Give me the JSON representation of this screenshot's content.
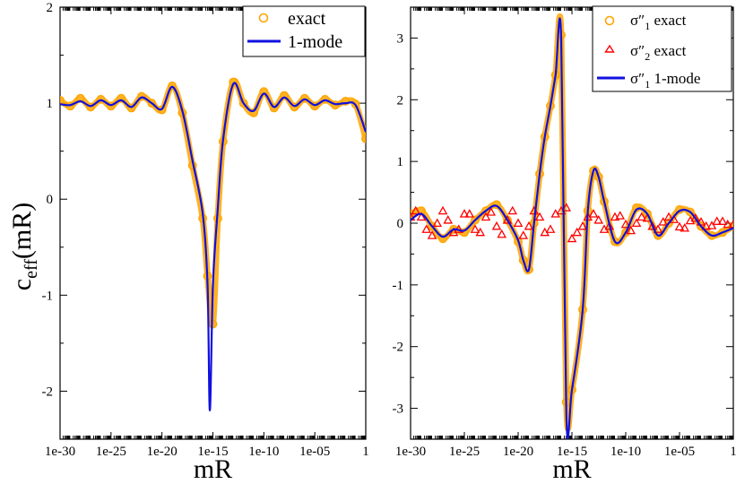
{
  "chart_data": [
    {
      "type": "line",
      "xscale": "log",
      "xlim": [
        1e-30,
        1
      ],
      "ylim": [
        -2.5,
        2
      ],
      "xticks": [
        "1e-30",
        "1e-25",
        "1e-20",
        "1e-15",
        "1e-10",
        "1e-05",
        "1"
      ],
      "yticks": [
        "-2",
        "-1",
        "0",
        "1",
        "2"
      ],
      "xlabel": "mR",
      "ylabel": "c_eff(mR)",
      "legend": "top-right",
      "grid": false,
      "series": [
        {
          "name": "exact",
          "style": "open-circle",
          "color": "#FFA500",
          "x": [
            1e-30,
            1e-29,
            1e-28,
            1e-27,
            1e-26,
            1e-25,
            1e-24,
            1e-23,
            1e-22,
            1e-21,
            1e-20,
            1e-19,
            1e-18,
            1e-17,
            1e-16,
            3e-16,
            1e-15,
            3e-15,
            1e-14,
            1e-13,
            1e-12,
            1e-11,
            1e-10,
            1e-09,
            1e-08,
            1e-07,
            1e-06,
            1e-05,
            0.0001,
            0.001,
            0.01,
            0.1,
            1
          ],
          "values": [
            1.03,
            0.97,
            1.05,
            0.96,
            1.04,
            0.97,
            1.05,
            0.95,
            1.07,
            1.0,
            0.93,
            1.18,
            0.9,
            0.35,
            -0.2,
            -0.8,
            -1.3,
            -0.2,
            0.6,
            1.22,
            1.0,
            0.9,
            1.12,
            0.95,
            1.08,
            0.96,
            1.05,
            0.97,
            1.04,
            0.98,
            1.02,
            0.99,
            0.63
          ]
        },
        {
          "name": "1-mode",
          "style": "line",
          "color": "#1010E0",
          "x": [
            1e-30,
            1e-29,
            1e-28,
            1e-27,
            1e-26,
            1e-25,
            1e-24,
            1e-23,
            1e-22,
            1e-21,
            1e-20,
            1e-19,
            1e-18,
            1e-17,
            1e-16,
            3e-16,
            5e-16,
            1e-15,
            3e-15,
            1e-14,
            1e-13,
            1e-12,
            1e-11,
            1e-10,
            1e-09,
            1e-08,
            1e-07,
            1e-06,
            1e-05,
            0.0001,
            0.001,
            0.01,
            0.1,
            1
          ],
          "values": [
            0.99,
            0.98,
            1.02,
            0.97,
            1.03,
            0.98,
            1.03,
            0.96,
            1.06,
            1.0,
            0.94,
            1.17,
            0.92,
            0.4,
            -0.15,
            -0.9,
            -2.2,
            -0.9,
            -0.1,
            0.62,
            1.2,
            1.0,
            0.92,
            1.1,
            0.96,
            1.06,
            0.97,
            1.04,
            0.98,
            1.03,
            0.99,
            1.0,
            0.98,
            0.7
          ]
        }
      ]
    },
    {
      "type": "line",
      "xscale": "log",
      "xlim": [
        1e-30,
        1
      ],
      "ylim": [
        -3.5,
        3.5
      ],
      "xticks": [
        "1e-30",
        "1e-25",
        "1e-20",
        "1e-15",
        "1e-10",
        "1e-05",
        "1"
      ],
      "yticks": [
        "-3",
        "-2",
        "-1",
        "0",
        "1",
        "2",
        "3"
      ],
      "xlabel": "mR",
      "ylabel": "",
      "legend": "top-right",
      "grid": false,
      "series": [
        {
          "name": "σ″1 exact",
          "style": "open-circle",
          "color": "#FFA500",
          "x": [
            1e-30,
            1e-29,
            1e-28,
            1e-27,
            1e-26,
            1e-25,
            1e-24,
            1e-23,
            1e-22,
            1e-21,
            1e-20,
            3e-20,
            1e-19,
            3e-19,
            1e-18,
            3e-18,
            1e-17,
            3e-17,
            1e-16,
            3e-16,
            1e-15,
            1e-14,
            3e-14,
            1e-13,
            3e-13,
            1e-12,
            1e-11,
            1e-10,
            1e-09,
            1e-08,
            1e-07,
            1e-06,
            1e-05,
            0.0001,
            0.001,
            0.01,
            0.1,
            1
          ],
          "values": [
            0.15,
            0.2,
            -0.05,
            -0.25,
            -0.1,
            -0.15,
            0.05,
            0.2,
            0.3,
            0.05,
            -0.3,
            -0.6,
            -0.75,
            0.0,
            0.8,
            1.4,
            1.9,
            2.4,
            3.05,
            -2.9,
            -2.7,
            -1.4,
            0.2,
            0.85,
            0.75,
            0.35,
            -0.3,
            -0.15,
            0.25,
            0.15,
            -0.2,
            0.0,
            0.22,
            0.18,
            -0.05,
            -0.2,
            -0.15,
            -0.05
          ]
        },
        {
          "name": "σ″2 exact",
          "style": "open-triangle",
          "color": "#FF0000",
          "x": [
            1e-30,
            3e-30,
            1e-29,
            3e-29,
            1e-28,
            3e-28,
            1e-27,
            3e-27,
            1e-26,
            3e-26,
            1e-25,
            3e-25,
            1e-24,
            3e-24,
            1e-23,
            3e-23,
            1e-22,
            3e-22,
            1e-21,
            3e-21,
            1e-20,
            3e-20,
            1e-19,
            3e-19,
            1e-18,
            3e-18,
            1e-17,
            3e-17,
            1e-16,
            3e-16,
            1e-15,
            3e-15,
            1e-14,
            3e-14,
            1e-13,
            3e-13,
            1e-12,
            3e-12,
            1e-11,
            3e-11,
            1e-10,
            3e-10,
            1e-09,
            3e-09,
            1e-08,
            3e-08,
            1e-07,
            3e-07,
            1e-06,
            3e-06,
            1e-05,
            3e-05,
            0.0001,
            0.0003,
            0.001,
            0.003,
            0.01,
            0.03,
            0.1,
            0.3,
            1
          ],
          "values": [
            0.1,
            0.2,
            0.1,
            -0.1,
            -0.2,
            0.0,
            0.2,
            0.05,
            -0.15,
            -0.1,
            0.15,
            0.15,
            -0.1,
            -0.15,
            0.1,
            0.18,
            -0.05,
            -0.18,
            0.05,
            0.2,
            0.0,
            -0.2,
            -0.05,
            0.2,
            0.1,
            -0.15,
            -0.1,
            0.15,
            0.2,
            0.25,
            -0.25,
            -0.15,
            -0.05,
            0.1,
            0.15,
            0.05,
            -0.1,
            -0.05,
            0.1,
            0.12,
            -0.02,
            -0.12,
            0.0,
            0.1,
            0.08,
            -0.05,
            -0.1,
            0.02,
            0.1,
            0.06,
            -0.06,
            -0.08,
            0.04,
            0.08,
            0.02,
            -0.05,
            -0.04,
            0.03,
            0.03,
            -0.02,
            -0.02
          ]
        },
        {
          "name": "σ″1 1-mode",
          "style": "line",
          "color": "#1010E0",
          "x": [
            1e-30,
            1e-29,
            1e-28,
            1e-27,
            1e-26,
            1e-25,
            1e-24,
            1e-23,
            1e-22,
            1e-21,
            1e-20,
            3e-20,
            1e-19,
            3e-19,
            1e-18,
            3e-18,
            1e-17,
            3e-17,
            1e-16,
            3e-16,
            1e-15,
            1e-14,
            3e-14,
            1e-13,
            3e-13,
            1e-12,
            1e-11,
            1e-10,
            1e-09,
            1e-08,
            1e-07,
            1e-06,
            1e-05,
            0.0001,
            0.001,
            0.01,
            0.1,
            1
          ],
          "values": [
            0.05,
            0.15,
            -0.05,
            -0.22,
            -0.1,
            -0.12,
            0.05,
            0.2,
            0.28,
            0.05,
            -0.28,
            -0.6,
            -0.75,
            0.0,
            0.8,
            1.4,
            1.9,
            2.4,
            3.0,
            -3.1,
            -2.7,
            -1.4,
            0.2,
            0.85,
            0.75,
            0.35,
            -0.3,
            -0.15,
            0.22,
            0.15,
            -0.2,
            0.0,
            0.2,
            0.18,
            -0.05,
            -0.2,
            -0.15,
            -0.08
          ]
        }
      ]
    }
  ],
  "legend_left": {
    "exact": "exact",
    "one_mode": "1-mode"
  },
  "legend_right": {
    "s1_exact_main": "σ″",
    "s1_exact_sub": "1",
    "s1_exact_rest": " exact",
    "s2_exact_main": "σ″",
    "s2_exact_sub": "2",
    "s2_exact_rest": " exact",
    "s1_mode_main": "σ″",
    "s1_mode_sub": "1",
    "s1_mode_rest": " 1-mode"
  },
  "ylabel_left": {
    "main": "c",
    "sub": "eff",
    "rest": "(mR)"
  }
}
